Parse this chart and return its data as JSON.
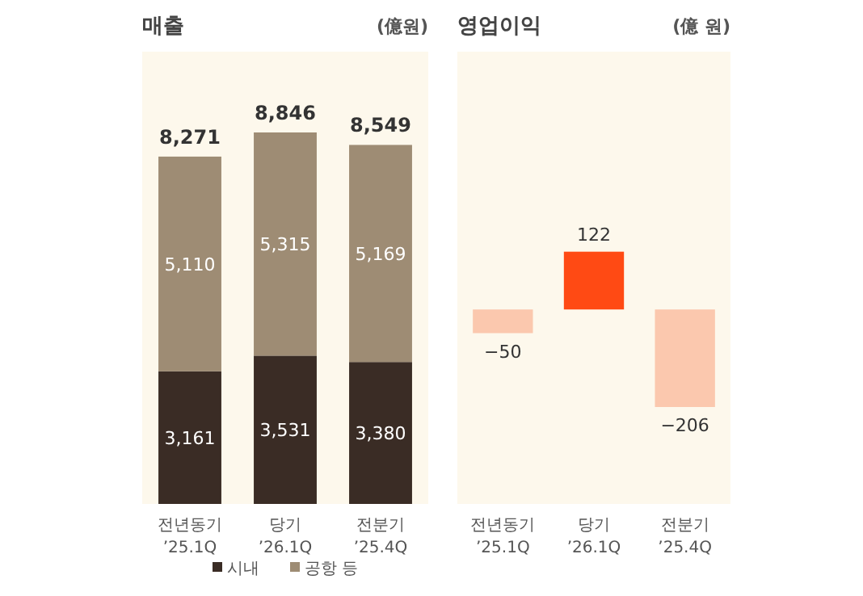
{
  "chart_data": [
    {
      "type": "bar",
      "title": "매출",
      "subtitle": "(億원)",
      "stacked": true,
      "legend": "bottom",
      "categories": [
        "전년동기\n’25.1Q",
        "당기\n’26.1Q",
        "전분기\n’25.4Q"
      ],
      "series": [
        {
          "name": "시내",
          "color": "#3a2c25",
          "values": [
            3161,
            3531,
            3380
          ],
          "value_labels": [
            "3,161",
            "3,531",
            "3,380"
          ]
        },
        {
          "name": "공항 등",
          "color": "#9e8c74",
          "values": [
            5110,
            5315,
            5169
          ],
          "value_labels": [
            "5,110",
            "5,315",
            "5,169"
          ]
        }
      ],
      "totals": [
        "8,271",
        "8,846",
        "8,549"
      ]
    },
    {
      "type": "bar",
      "title": "영업이익",
      "subtitle": "(億 원)",
      "categories": [
        "전년동기\n’25.1Q",
        "당기\n’26.1Q",
        "전분기\n’25.4Q"
      ],
      "values": [
        -50,
        122,
        -206
      ],
      "colors": [
        "#fbc8ae",
        "#ff4a14",
        "#fbc8ae"
      ],
      "value_labels": [
        "−50",
        "122",
        "−206"
      ]
    }
  ]
}
